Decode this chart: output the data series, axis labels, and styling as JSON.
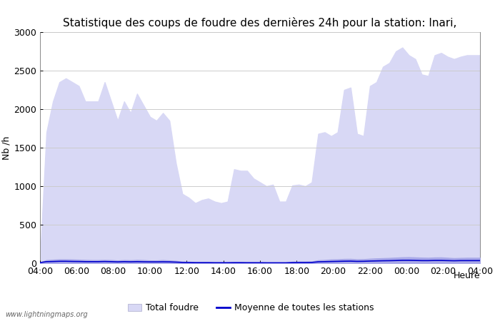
{
  "title": "Statistique des coups de foudre des dernières 24h pour la station: Inari,",
  "ylabel": "Nb /h",
  "xlabel": "Heure",
  "watermark": "www.lightningmaps.org",
  "ylim": [
    0,
    3000
  ],
  "yticks": [
    0,
    500,
    1000,
    1500,
    2000,
    2500,
    3000
  ],
  "xtick_labels": [
    "04:00",
    "06:00",
    "08:00",
    "10:00",
    "12:00",
    "14:00",
    "16:00",
    "18:00",
    "20:00",
    "22:00",
    "00:00",
    "02:00",
    "04:00"
  ],
  "total_foudre_color": "#d8d8f5",
  "detected_foudre_color": "#a8a8e8",
  "moyenne_color": "#0000cc",
  "legend_total": "Total foudre",
  "legend_moyenne": "Moyenne de toutes les stations",
  "total_foudre": [
    50,
    1700,
    2100,
    2350,
    2400,
    2350,
    2300,
    2100,
    2100,
    2100,
    2350,
    2100,
    1850,
    2100,
    1950,
    2200,
    2050,
    1900,
    1850,
    1950,
    1850,
    1300,
    900,
    850,
    780,
    820,
    840,
    800,
    780,
    800,
    1220,
    1200,
    1200,
    1100,
    1050,
    1000,
    1020,
    800,
    800,
    1010,
    1020,
    1000,
    1050,
    1680,
    1700,
    1650,
    1700,
    2250,
    2280,
    1680,
    1650,
    2300,
    2350,
    2550,
    2600,
    2750,
    2800,
    2700,
    2650,
    2450,
    2430,
    2700,
    2730,
    2680,
    2650,
    2680,
    2700,
    2700,
    2700
  ],
  "detected_foudre": [
    10,
    40,
    45,
    50,
    50,
    48,
    45,
    42,
    40,
    40,
    42,
    40,
    35,
    40,
    38,
    42,
    40,
    35,
    35,
    40,
    35,
    30,
    20,
    18,
    15,
    15,
    15,
    12,
    12,
    12,
    15,
    15,
    14,
    13,
    12,
    10,
    10,
    10,
    10,
    18,
    20,
    20,
    22,
    38,
    42,
    48,
    50,
    55,
    56,
    50,
    52,
    58,
    62,
    65,
    68,
    72,
    76,
    78,
    75,
    72,
    70,
    74,
    75,
    70,
    65,
    68,
    70,
    70,
    70
  ],
  "moyenne": [
    8,
    20,
    22,
    25,
    25,
    23,
    22,
    20,
    20,
    20,
    22,
    20,
    17,
    20,
    18,
    20,
    18,
    17,
    17,
    18,
    17,
    14,
    10,
    9,
    7,
    7,
    7,
    6,
    6,
    6,
    7,
    7,
    6,
    6,
    6,
    5,
    5,
    5,
    5,
    8,
    9,
    9,
    10,
    18,
    20,
    22,
    24,
    26,
    27,
    24,
    25,
    28,
    30,
    32,
    33,
    35,
    38,
    38,
    36,
    34,
    34,
    36,
    36,
    34,
    32,
    34,
    34,
    34,
    34
  ],
  "n_points": 69,
  "background_color": "#ffffff",
  "plot_bg_color": "#ffffff",
  "grid_color": "#cccccc",
  "title_fontsize": 11,
  "tick_fontsize": 9,
  "label_fontsize": 9
}
